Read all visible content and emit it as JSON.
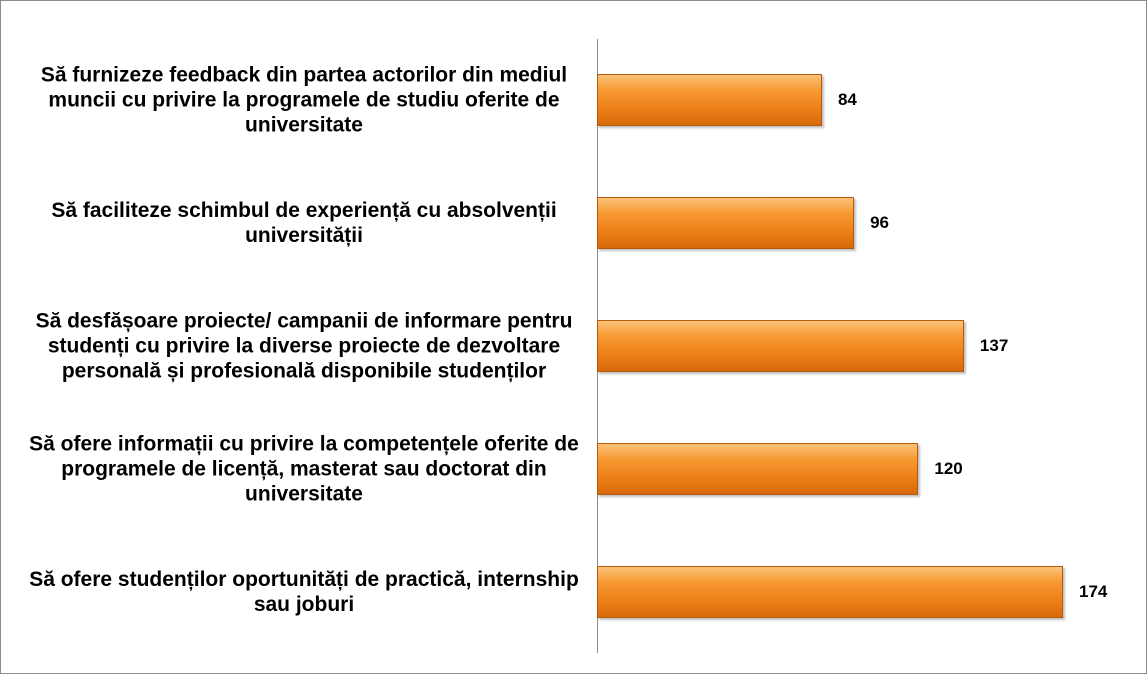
{
  "chart_data": {
    "type": "bar",
    "orientation": "horizontal",
    "categories": [
      "Să furnizeze feedback din partea actorilor din mediul muncii cu privire la programele de studiu oferite de universitate",
      "Să faciliteze schimbul de experiență cu absolvenții universității",
      "Să desfășoare proiecte/ campanii de informare pentru studenți cu privire la diverse proiecte de dezvoltare personală și profesională disponibile studenților",
      "Să ofere informații cu privire la competențele oferite de programele de licență, masterat sau doctorat din universitate",
      "Să ofere studenților oportunități de practică, internship sau joburi"
    ],
    "values": [
      84,
      96,
      137,
      120,
      174
    ],
    "color": "#f28c28"
  }
}
